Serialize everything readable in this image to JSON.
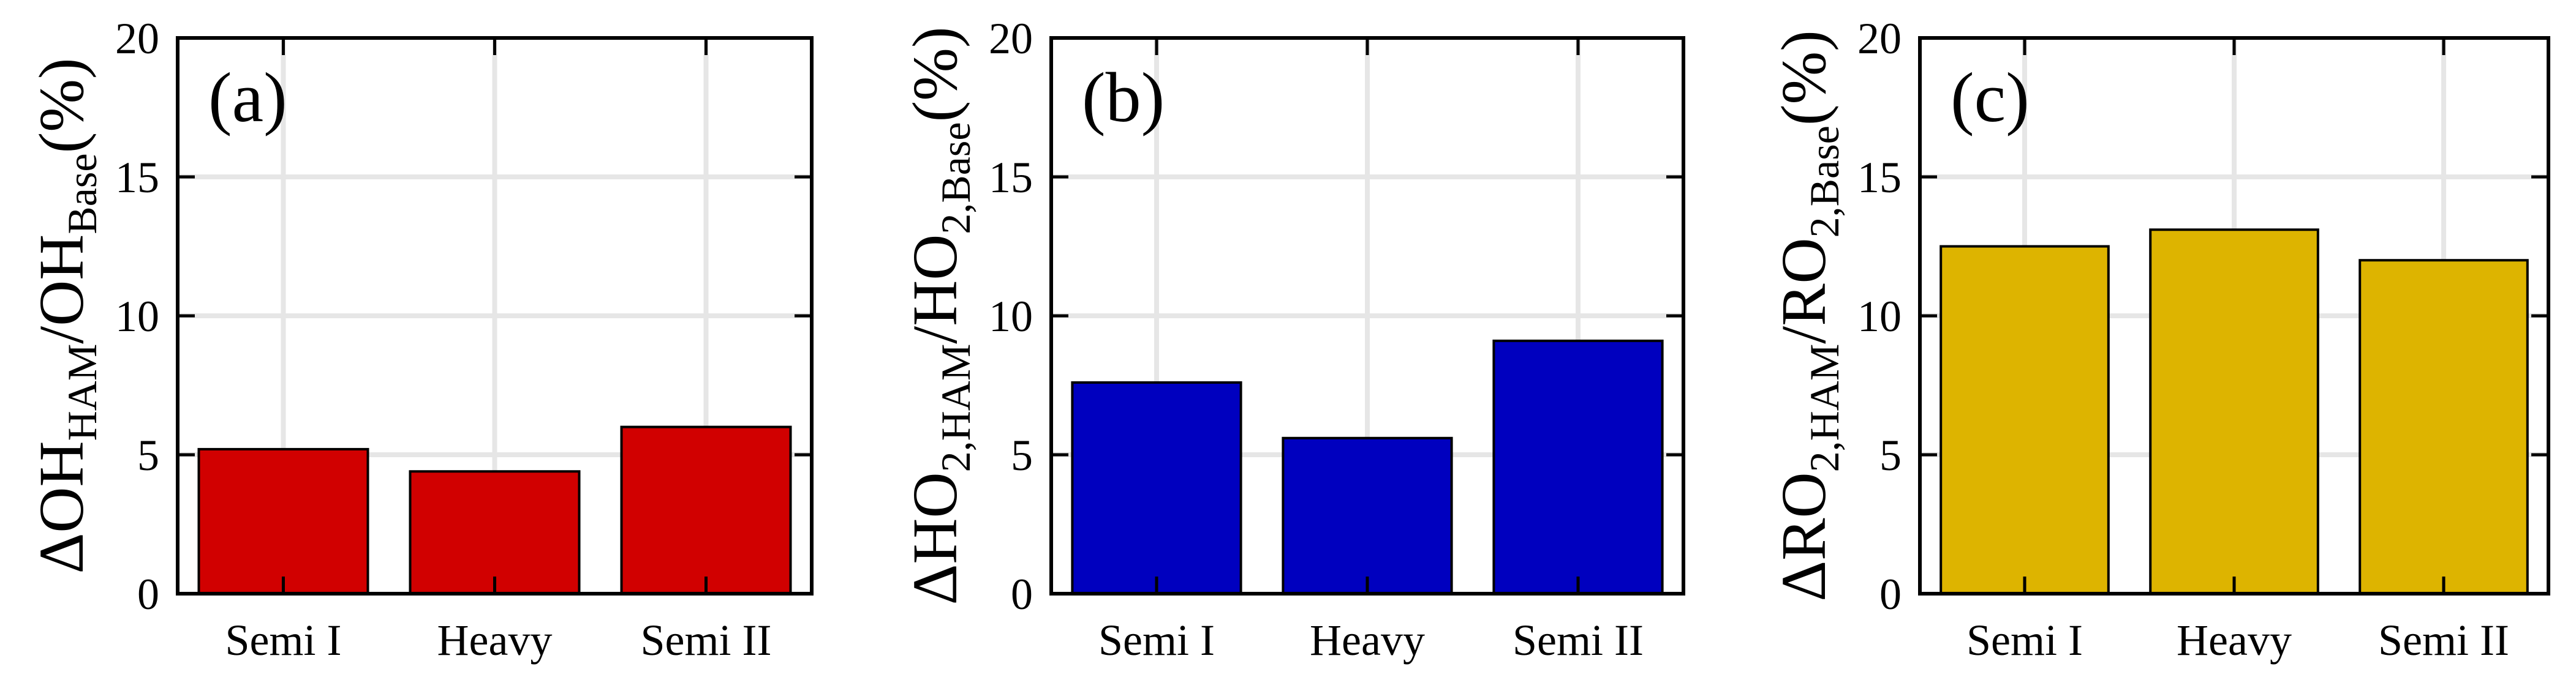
{
  "colors": {
    "panel_a": "#d10000",
    "panel_b": "#0000bf",
    "panel_c": "#ddb400",
    "grid": "#e6e6e6",
    "axis": "#000000"
  },
  "chart_data": [
    {
      "type": "bar",
      "panel_label": "(a)",
      "ylabel": {
        "parts": [
          {
            "t": "ΔOH",
            "s": "main"
          },
          {
            "t": "HAM",
            "s": "sub"
          },
          {
            "t": "/OH",
            "s": "main"
          },
          {
            "t": "Base",
            "s": "sub"
          },
          {
            "t": "(%)",
            "s": "main"
          }
        ]
      },
      "categories": [
        "Semi I",
        "Heavy",
        "Semi II"
      ],
      "values": [
        5.2,
        4.4,
        6.0
      ],
      "ylim": [
        0,
        20
      ],
      "yticks": [
        "0",
        "5",
        "10",
        "15",
        "20"
      ],
      "grid": true,
      "color_key": "panel_a"
    },
    {
      "type": "bar",
      "panel_label": "(b)",
      "ylabel": {
        "parts": [
          {
            "t": "ΔHO",
            "s": "main"
          },
          {
            "t": "2,HAM",
            "s": "sub"
          },
          {
            "t": "/HO",
            "s": "main"
          },
          {
            "t": "2,Base",
            "s": "sub"
          },
          {
            "t": "(%)",
            "s": "main"
          }
        ]
      },
      "categories": [
        "Semi I",
        "Heavy",
        "Semi II"
      ],
      "values": [
        7.6,
        5.6,
        9.1
      ],
      "ylim": [
        0,
        20
      ],
      "yticks": [
        "0",
        "5",
        "10",
        "15",
        "20"
      ],
      "grid": true,
      "color_key": "panel_b"
    },
    {
      "type": "bar",
      "panel_label": "(c)",
      "ylabel": {
        "parts": [
          {
            "t": "ΔRO",
            "s": "main"
          },
          {
            "t": "2,HAM",
            "s": "sub"
          },
          {
            "t": "/RO",
            "s": "main"
          },
          {
            "t": "2,Base",
            "s": "sub"
          },
          {
            "t": "(%)",
            "s": "main"
          }
        ]
      },
      "categories": [
        "Semi I",
        "Heavy",
        "Semi II"
      ],
      "values": [
        12.5,
        13.1,
        12.0
      ],
      "ylim": [
        0,
        20
      ],
      "yticks": [
        "0",
        "5",
        "10",
        "15",
        "20"
      ],
      "grid": true,
      "color_key": "panel_c"
    }
  ]
}
